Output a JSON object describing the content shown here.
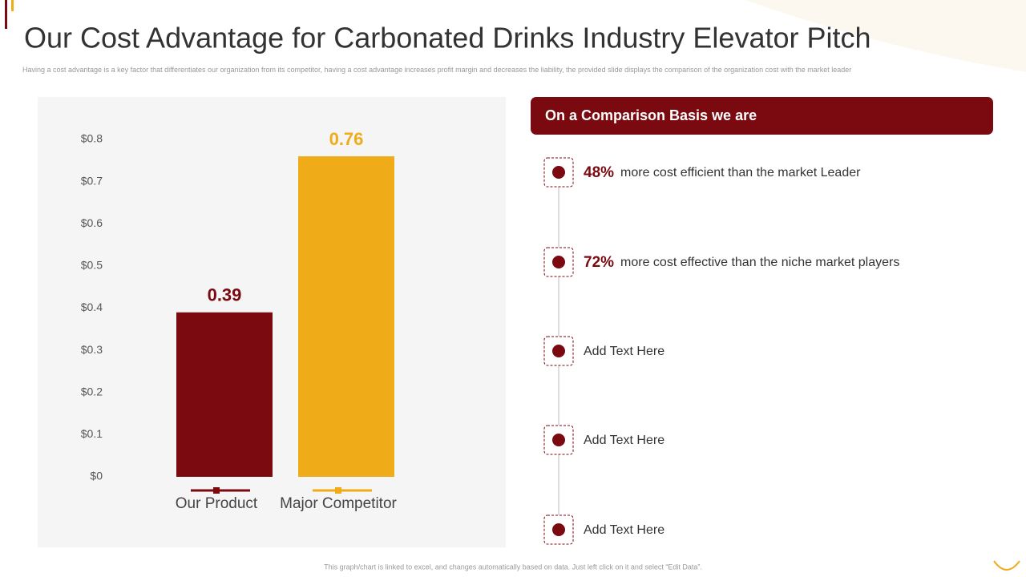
{
  "title": "Our Cost Advantage for Carbonated Drinks Industry Elevator Pitch",
  "subtitle": "Having a cost advantage is a key factor that differentiates our organization from its competitor, having a cost advantage increases profit margin and decreases the liability, the provided slide displays the comparison of the organization cost with the market leader",
  "chart_data": {
    "type": "bar",
    "categories": [
      "Our Product",
      "Major Competitor"
    ],
    "values": [
      0.39,
      0.76
    ],
    "colors": [
      "#7a0a10",
      "#efac18"
    ],
    "ylim": [
      0,
      0.8
    ],
    "yticks": [
      {
        "value": 0,
        "label": "$0"
      },
      {
        "value": 0.1,
        "label": "$0.1"
      },
      {
        "value": 0.2,
        "label": "$0.2"
      },
      {
        "value": 0.3,
        "label": "$0.3"
      },
      {
        "value": 0.4,
        "label": "$0.4"
      },
      {
        "value": 0.5,
        "label": "$0.5"
      },
      {
        "value": 0.6,
        "label": "$0.6"
      },
      {
        "value": 0.7,
        "label": "$0.7"
      },
      {
        "value": 0.8,
        "label": "$0.8"
      }
    ],
    "grid": false
  },
  "comparison": {
    "header": "On a Comparison Basis we are",
    "items": [
      {
        "highlight": "48%",
        "text": "more cost efficient than the market Leader"
      },
      {
        "highlight": "72%",
        "text": "more cost effective than the niche market players"
      },
      {
        "text": "Add Text Here"
      },
      {
        "text": "Add Text Here"
      },
      {
        "text": "Add Text Here"
      }
    ]
  },
  "footer": "This graph/chart is linked to excel, and changes automatically based on data. Just left click on it and select “Edit Data”."
}
